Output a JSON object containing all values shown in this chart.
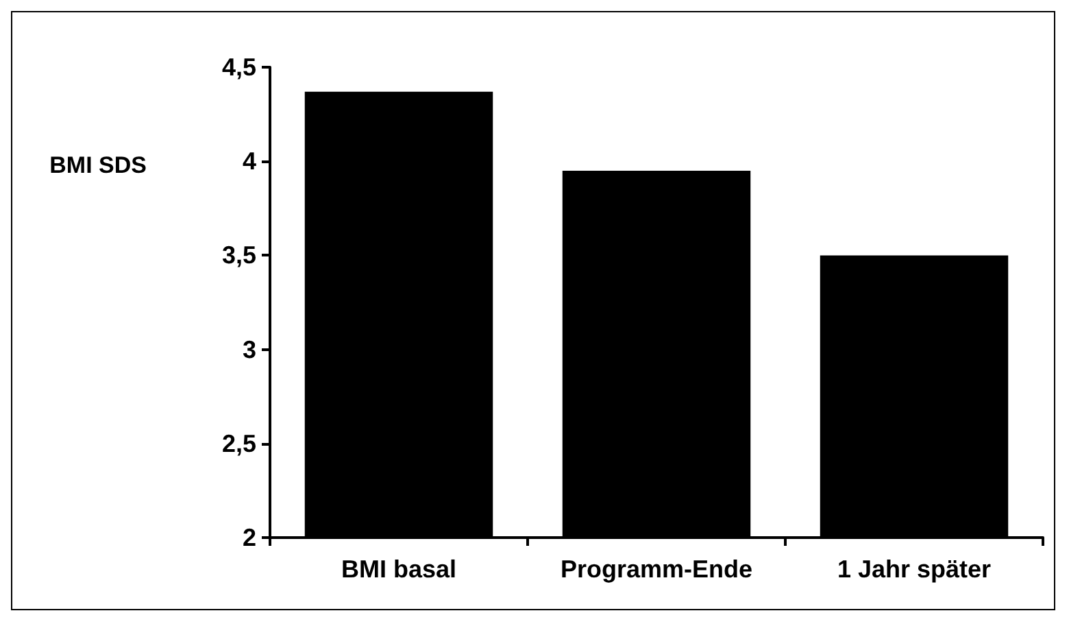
{
  "chart_data": {
    "type": "bar",
    "ylabel": "BMI SDS",
    "categories": [
      "BMI basal",
      "Programm-Ende",
      "1 Jahr später"
    ],
    "values": [
      4.37,
      3.95,
      3.5
    ],
    "color": "#000000",
    "ylim": [
      2,
      4.5
    ],
    "yticks": [
      2,
      {
        "value": 2.5,
        "label": "2,5"
      },
      3,
      {
        "value": 3.5,
        "label": "3,5"
      },
      4,
      {
        "value": 4.5,
        "label": "4,5"
      }
    ],
    "grid": false
  }
}
